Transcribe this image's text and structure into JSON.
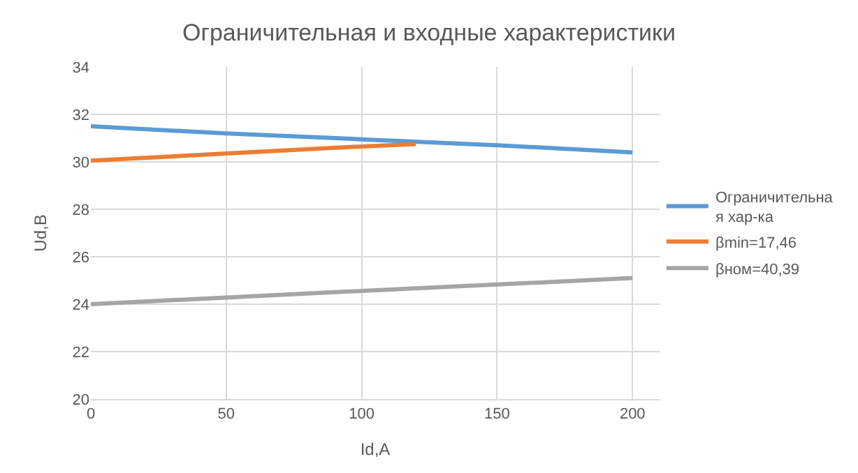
{
  "chart_data": {
    "type": "line",
    "title": "Ограничительная и входные характеристики",
    "xlabel": "Id,A",
    "ylabel": "Ud,B",
    "xlim": [
      0,
      210
    ],
    "xticks": [
      0,
      50,
      100,
      150,
      200
    ],
    "ylim": [
      20,
      34
    ],
    "yticks": [
      20,
      22,
      24,
      26,
      28,
      30,
      32,
      34
    ],
    "grid": true,
    "legend": "right",
    "line_style": "solid",
    "marker": "none",
    "series": [
      {
        "name": "Ограничительна\nя хар-ка",
        "color": "#5b9bd5",
        "x": [
          0,
          50,
          100,
          150,
          200
        ],
        "values": [
          31.5,
          31.2,
          30.95,
          30.7,
          30.4
        ]
      },
      {
        "name": "βmin=17,46",
        "color": "#ed7d31",
        "x": [
          0,
          50,
          100,
          120
        ],
        "values": [
          30.05,
          30.35,
          30.65,
          30.75
        ]
      },
      {
        "name": "βном=40,39",
        "color": "#a5a5a5",
        "x": [
          0,
          50,
          100,
          150,
          200
        ],
        "values": [
          24.0,
          24.28,
          24.56,
          24.83,
          25.1
        ]
      }
    ]
  }
}
